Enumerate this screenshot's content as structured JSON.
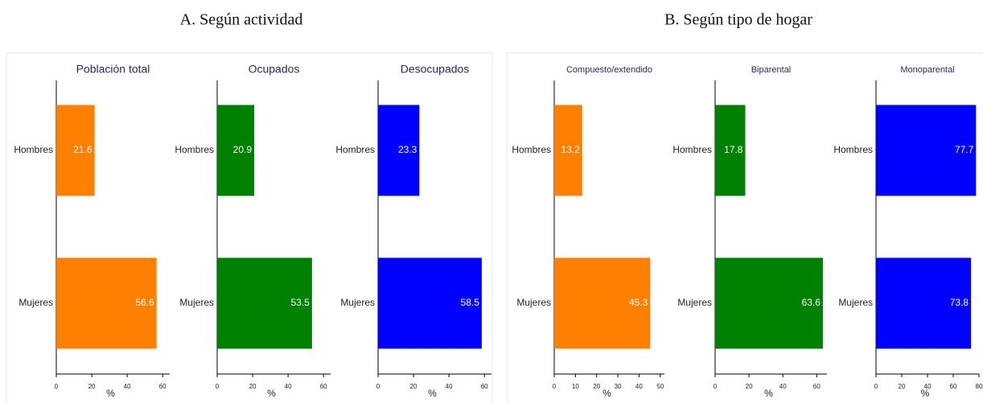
{
  "headings": [
    "A. Según actividad",
    "B. Según tipo de hogar"
  ],
  "chart_data": [
    {
      "type": "barh",
      "title": "Población total",
      "categories": [
        "Hombres",
        "Mujeres"
      ],
      "values": [
        21.6,
        56.6
      ],
      "color": "#ff8000",
      "xlim": [
        0,
        64
      ],
      "xticks": [
        0,
        20,
        40,
        60
      ],
      "xlabel": "%"
    },
    {
      "type": "barh",
      "title": "Ocupados",
      "categories": [
        "Hombres",
        "Mujeres"
      ],
      "values": [
        20.9,
        53.5
      ],
      "color": "#008000",
      "xlim": [
        0,
        64
      ],
      "xticks": [
        0,
        20,
        40,
        60
      ],
      "xlabel": "%"
    },
    {
      "type": "barh",
      "title": "Desocupados",
      "categories": [
        "Hombres",
        "Mujeres"
      ],
      "values": [
        23.3,
        58.5
      ],
      "color": "#0000ff",
      "xlim": [
        0,
        64
      ],
      "xticks": [
        0,
        20,
        40,
        60
      ],
      "xlabel": "%"
    },
    {
      "type": "barh",
      "title": "Compuesto/extendido",
      "categories": [
        "Hombres",
        "Mujeres"
      ],
      "values": [
        13.2,
        45.3
      ],
      "color": "#ff8000",
      "xlim": [
        0,
        52
      ],
      "xticks": [
        0,
        10,
        20,
        30,
        40,
        50
      ],
      "xlabel": "%"
    },
    {
      "type": "barh",
      "title": "Biparental",
      "categories": [
        "Hombres",
        "Mujeres"
      ],
      "values": [
        17.8,
        63.6
      ],
      "color": "#008000",
      "xlim": [
        0,
        66
      ],
      "xticks": [
        0,
        20,
        40,
        60
      ],
      "xlabel": "%"
    },
    {
      "type": "barh",
      "title": "Monoparental",
      "categories": [
        "Hombres",
        "Mujeres"
      ],
      "values": [
        77.7,
        73.8
      ],
      "color": "#0000ff",
      "xlim": [
        0,
        80
      ],
      "xticks": [
        0,
        20,
        40,
        60,
        80
      ],
      "xlabel": "%"
    }
  ]
}
